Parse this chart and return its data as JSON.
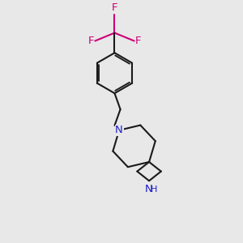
{
  "bg_color": "#e8e8e8",
  "bond_color": "#1a1a1a",
  "N_color": "#2020cc",
  "F_color": "#cc0077",
  "line_width": 1.5,
  "font_size_atom": 9.5,
  "font_size_F": 9.5,
  "xlim": [
    1.5,
    8.5
  ],
  "ylim": [
    0.2,
    10.5
  ]
}
